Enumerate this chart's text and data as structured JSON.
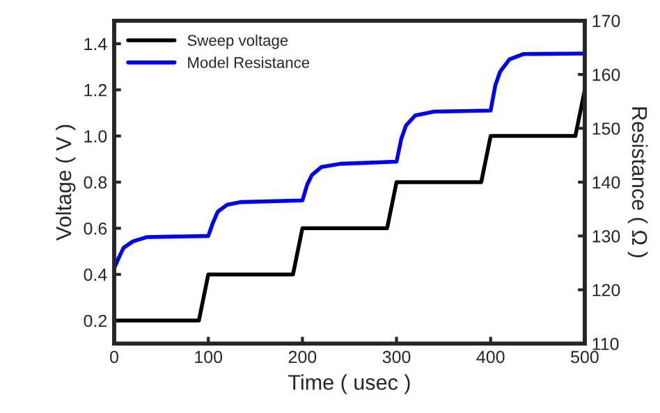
{
  "chart_data": {
    "type": "line",
    "xlabel": "Time ( usec )",
    "ylabel": "Voltage ( V )",
    "y2label": "Resistance ( Ω )",
    "xlim": [
      0,
      500
    ],
    "xticks": [
      0,
      100,
      200,
      300,
      400,
      500
    ],
    "ylim": [
      0.1,
      1.5
    ],
    "yticks": [
      {
        "value": 0.2,
        "label": "0.2"
      },
      {
        "value": 0.4,
        "label": "0.4"
      },
      {
        "value": 0.6,
        "label": "0.6"
      },
      {
        "value": 0.8,
        "label": "0.8"
      },
      {
        "value": 1.0,
        "label": "1.0"
      },
      {
        "value": 1.2,
        "label": "1.2"
      },
      {
        "value": 1.4,
        "label": "1.4"
      }
    ],
    "y2lim": [
      110,
      170
    ],
    "y2ticks": [
      110,
      120,
      130,
      140,
      150,
      160,
      170
    ],
    "legend": "top left",
    "grid": false,
    "marker": "none",
    "line_style": "solid",
    "series": [
      {
        "name": "Sweep voltage",
        "color": "#000000",
        "axis": "y",
        "x": [
          0,
          90,
          100,
          190,
          200,
          290,
          300,
          390,
          400,
          490,
          500
        ],
        "values": [
          0.2,
          0.2,
          0.4,
          0.4,
          0.6,
          0.6,
          0.8,
          0.8,
          1.0,
          1.0,
          1.2
        ]
      },
      {
        "name": "Model Resistance",
        "color": "#0000ee",
        "axis": "y2",
        "x": [
          0,
          5,
          10,
          20,
          35,
          100,
          105,
          110,
          120,
          135,
          200,
          205,
          210,
          220,
          240,
          300,
          305,
          310,
          320,
          340,
          400,
          405,
          410,
          420,
          435,
          500
        ],
        "values": [
          124,
          126,
          127.8,
          129,
          129.8,
          130,
          132.5,
          134.5,
          135.8,
          136.3,
          136.6,
          139.5,
          141.3,
          142.8,
          143.4,
          143.8,
          148,
          150.5,
          152.4,
          153.1,
          153.3,
          158,
          160.5,
          162.8,
          163.8,
          163.9
        ]
      }
    ]
  }
}
